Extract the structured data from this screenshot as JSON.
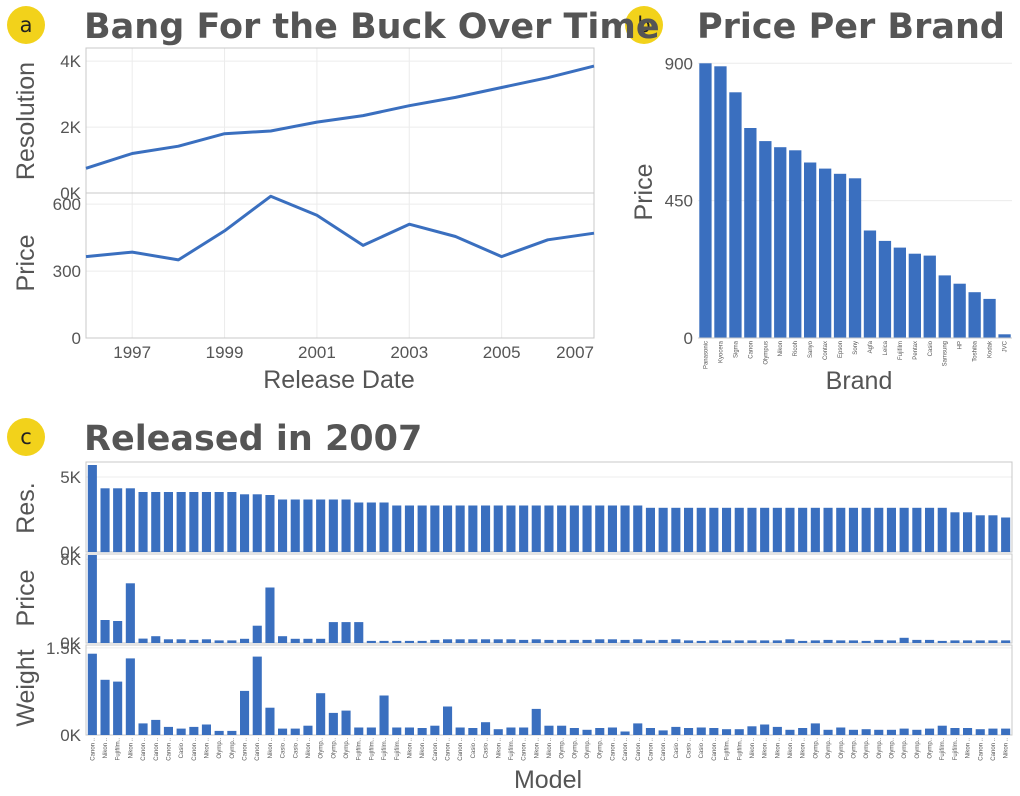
{
  "badges": {
    "a": "a",
    "b": "b",
    "c": "c"
  },
  "colors": {
    "bar": "#3a6fbf",
    "badge": "#f2d21b",
    "text": "#555555"
  },
  "chart_data": [
    {
      "id": "a",
      "type": "line",
      "title": "Bang For the Buck Over Time",
      "xlabel": "Release Date",
      "x": [
        1996,
        1997,
        1998,
        1999,
        2000,
        2001,
        2002,
        2003,
        2004,
        2005,
        2006,
        2007
      ],
      "xticks": [
        "1997",
        "1999",
        "2001",
        "2003",
        "2005",
        "2007"
      ],
      "xlim": [
        1996,
        2007
      ],
      "panels": [
        {
          "ylabel": "Resolution",
          "ylim": [
            0,
            4400
          ],
          "yticks": [
            "0K",
            "2K",
            "4K"
          ],
          "ytick_values": [
            0,
            2000,
            4000
          ],
          "values": [
            750,
            1200,
            1420,
            1800,
            1880,
            2150,
            2350,
            2650,
            2900,
            3200,
            3500,
            3850
          ]
        },
        {
          "ylabel": "Price",
          "ylim": [
            0,
            650
          ],
          "yticks": [
            "0",
            "300",
            "600"
          ],
          "ytick_values": [
            0,
            300,
            600
          ],
          "values": [
            365,
            385,
            350,
            480,
            635,
            550,
            415,
            510,
            455,
            365,
            440,
            470
          ]
        }
      ]
    },
    {
      "id": "b",
      "type": "bar",
      "title": "Price Per Brand",
      "xlabel": "Brand",
      "ylabel": "Price",
      "ylim": [
        0,
        950
      ],
      "yticks": [
        "0",
        "450",
        "900"
      ],
      "ytick_values": [
        0,
        450,
        900
      ],
      "categories": [
        "Panasonic",
        "Kyocera",
        "Sigma",
        "Canon",
        "Olympus",
        "Nikon",
        "Ricoh",
        "Sanyo",
        "Contax",
        "Epson",
        "Sony",
        "Agfa",
        "Leica",
        "Fujifilm",
        "Pentax",
        "Casio",
        "Samsung",
        "HP",
        "Toshiba",
        "Kodak",
        "JVC"
      ],
      "values": [
        900,
        890,
        805,
        688,
        645,
        625,
        615,
        575,
        555,
        538,
        523,
        352,
        318,
        296,
        276,
        270,
        205,
        178,
        150,
        128,
        12
      ]
    },
    {
      "id": "c",
      "type": "bar",
      "title": "Released in 2007",
      "xlabel": "Model",
      "categories": [
        "Canon ..",
        "Nikon ..",
        "Fujifilm..",
        "Nikon ..",
        "Canon ..",
        "Canon ..",
        "Canon ..",
        "Casio ..",
        "Canon ..",
        "Nikon ..",
        "Olymp..",
        "Olymp..",
        "Canon ..",
        "Canon ..",
        "Nikon ..",
        "Casio ..",
        "Casio ..",
        "Nikon ..",
        "Olymp..",
        "Olymp..",
        "Olymp..",
        "Fujifilm..",
        "Fujifilm..",
        "Fujifilm..",
        "Fujifilm..",
        "Nikon ..",
        "Nikon ..",
        "Canon ..",
        "Canon ..",
        "Canon ..",
        "Casio ..",
        "Casio ..",
        "Nikon ..",
        "Fujifilm..",
        "Canon ..",
        "Nikon ..",
        "Nikon ..",
        "Olymp..",
        "Olymp..",
        "Olymp..",
        "Olymp..",
        "Canon ..",
        "Canon ..",
        "Canon ..",
        "Canon ..",
        "Canon ..",
        "Casio ..",
        "Casio ..",
        "Casio ..",
        "Canon ..",
        "Fujifilm..",
        "Fujifilm..",
        "Nikon ..",
        "Nikon ..",
        "Nikon ..",
        "Nikon ..",
        "Nikon ..",
        "Olymp..",
        "Olymp..",
        "Olymp..",
        "Olymp..",
        "Olymp..",
        "Olymp..",
        "Olymp..",
        "Olymp..",
        "Olymp..",
        "Olymp..",
        "Fujifilm..",
        "Fujifilm..",
        "Nikon ..",
        "Canon ..",
        "Canon ..",
        "Nikon .."
      ],
      "panels": [
        {
          "ylabel": "Res.",
          "ylim": [
            0,
            6000
          ],
          "yticks": [
            "0K",
            "5K"
          ],
          "ytick_values": [
            0,
            5000
          ],
          "values": [
            5800,
            4250,
            4250,
            4250,
            4000,
            4000,
            4000,
            4000,
            4000,
            4000,
            4000,
            4000,
            3850,
            3850,
            3800,
            3500,
            3500,
            3500,
            3500,
            3500,
            3500,
            3300,
            3300,
            3300,
            3100,
            3100,
            3100,
            3100,
            3100,
            3100,
            3100,
            3100,
            3100,
            3100,
            3100,
            3100,
            3100,
            3100,
            3100,
            3100,
            3100,
            3100,
            3100,
            3100,
            2950,
            2950,
            2950,
            2950,
            2950,
            2950,
            2950,
            2950,
            2950,
            2950,
            2950,
            2950,
            2950,
            2950,
            2950,
            2950,
            2950,
            2950,
            2950,
            2950,
            2950,
            2950,
            2950,
            2950,
            2650,
            2650,
            2450,
            2450,
            2300
          ]
        },
        {
          "ylabel": "Price",
          "ylim": [
            0,
            8500
          ],
          "yticks": [
            "0K",
            "8K"
          ],
          "ytick_values": [
            0,
            8000
          ],
          "values": [
            8400,
            2200,
            2100,
            5700,
            420,
            650,
            350,
            350,
            300,
            350,
            250,
            250,
            400,
            1650,
            5300,
            650,
            400,
            400,
            400,
            2000,
            2000,
            2000,
            200,
            200,
            200,
            200,
            200,
            300,
            350,
            350,
            350,
            350,
            350,
            350,
            300,
            350,
            300,
            300,
            300,
            300,
            350,
            350,
            300,
            350,
            250,
            300,
            350,
            250,
            200,
            250,
            250,
            250,
            250,
            250,
            250,
            350,
            200,
            250,
            300,
            250,
            250,
            200,
            300,
            250,
            500,
            300,
            300,
            200,
            250,
            250,
            250,
            250,
            250
          ]
        },
        {
          "ylabel": "Weight",
          "ylim": [
            0,
            1550
          ],
          "yticks": [
            "0K",
            "1.5K"
          ],
          "ytick_values": [
            0,
            1500
          ],
          "values": [
            1400,
            950,
            920,
            1320,
            200,
            260,
            140,
            110,
            140,
            180,
            70,
            70,
            760,
            1350,
            470,
            110,
            110,
            160,
            720,
            380,
            420,
            130,
            130,
            680,
            130,
            130,
            120,
            160,
            490,
            130,
            120,
            220,
            100,
            130,
            130,
            450,
            160,
            160,
            120,
            90,
            120,
            130,
            60,
            200,
            120,
            80,
            140,
            120,
            130,
            120,
            100,
            100,
            150,
            180,
            140,
            90,
            120,
            200,
            90,
            130,
            90,
            100,
            90,
            90,
            110,
            90,
            110,
            160,
            120,
            120,
            100,
            110,
            110
          ]
        }
      ]
    }
  ]
}
